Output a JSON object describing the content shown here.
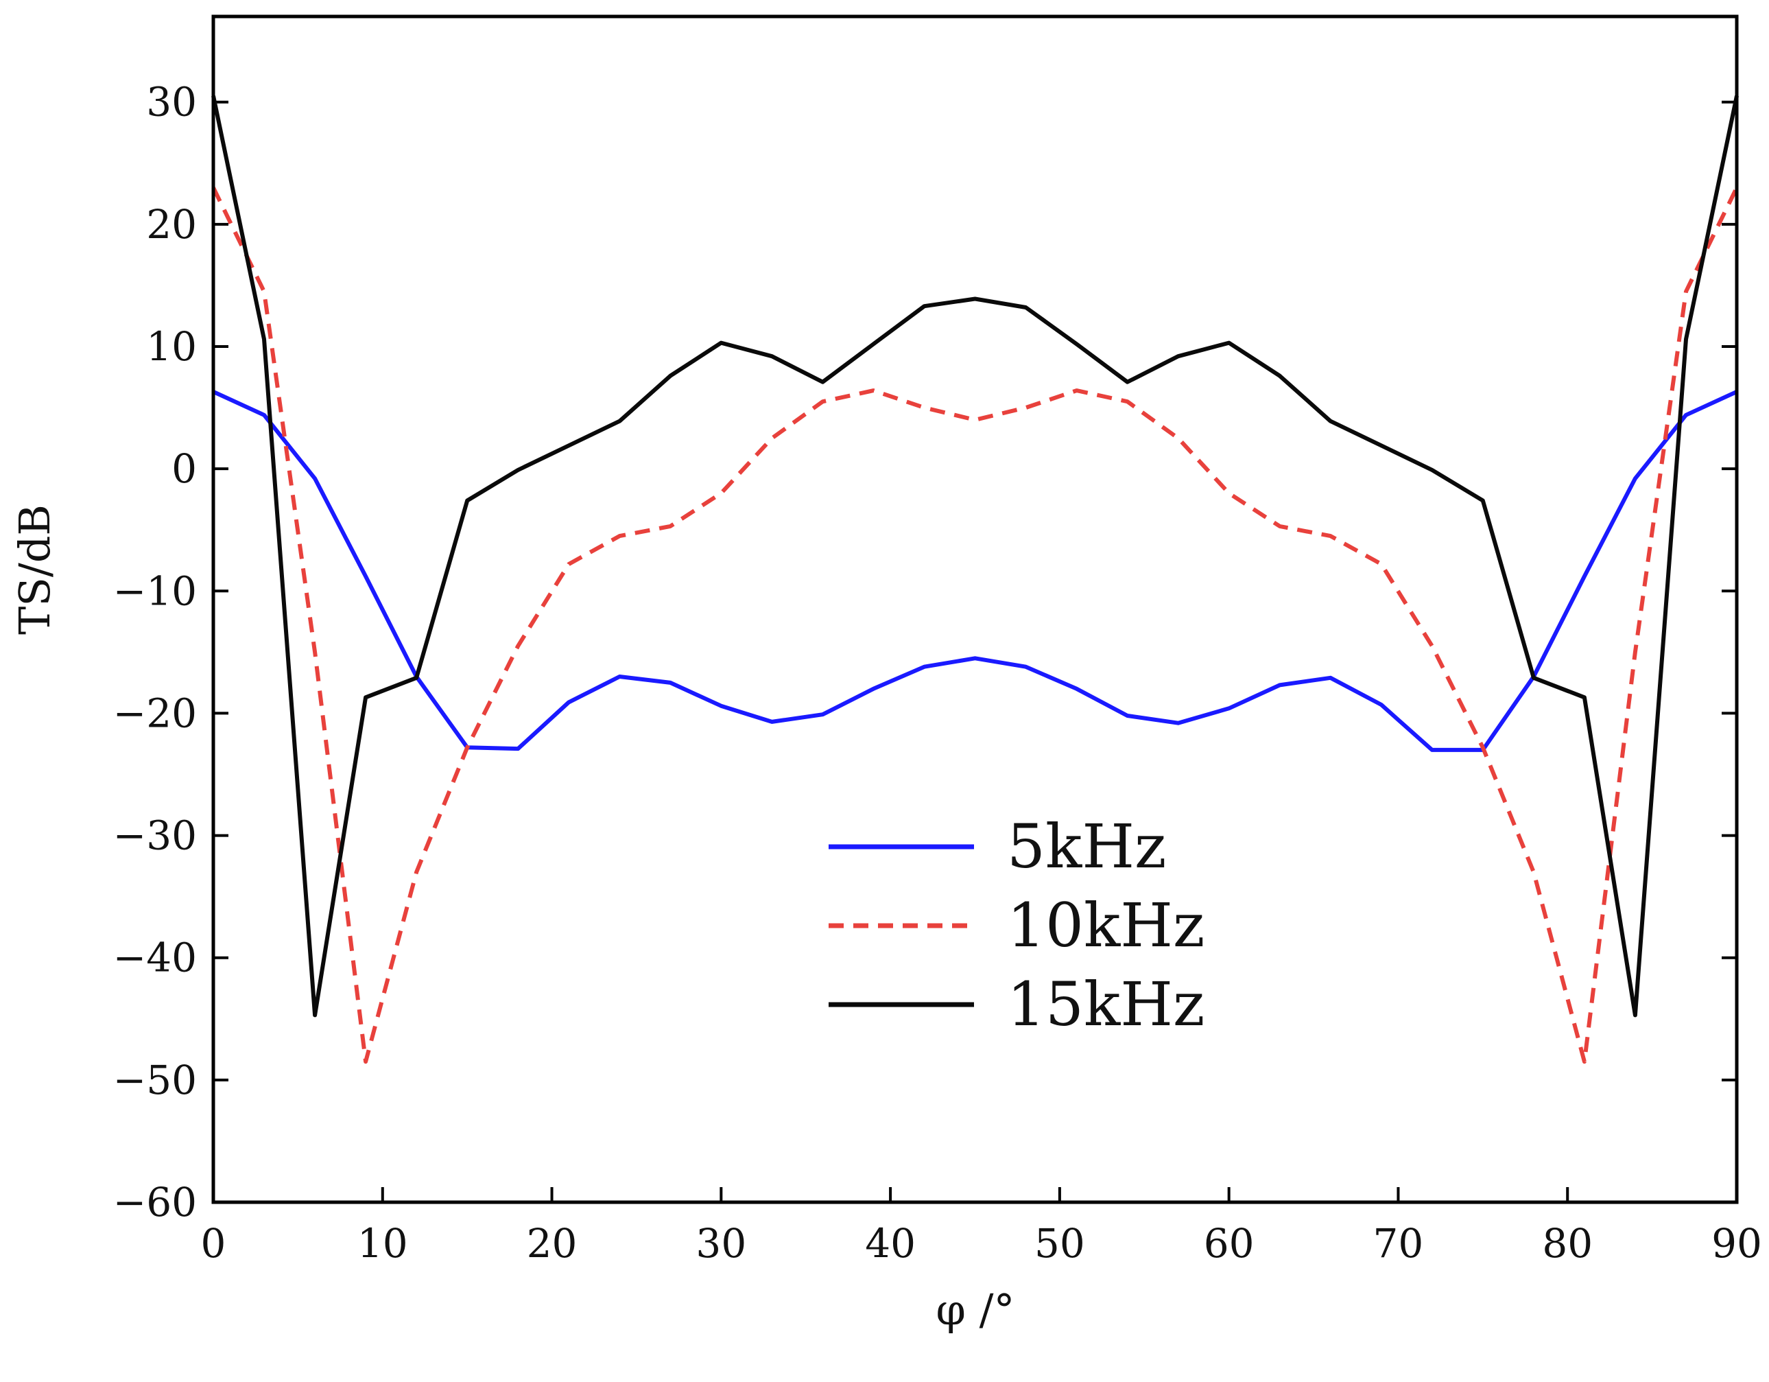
{
  "chart_data": {
    "type": "line",
    "xlabel": "φ /°",
    "ylabel": "TS/dB",
    "xlim": [
      0,
      90
    ],
    "ylim": [
      -60,
      37
    ],
    "xticks": [
      0,
      10,
      20,
      30,
      40,
      50,
      60,
      70,
      80,
      90
    ],
    "yticks": [
      -60,
      -50,
      -40,
      -30,
      -20,
      -10,
      0,
      10,
      20,
      30
    ],
    "xtick_labels": [
      "0",
      "10",
      "20",
      "30",
      "40",
      "50",
      "60",
      "70",
      "80",
      "90"
    ],
    "ytick_labels": [
      "−60",
      "−50",
      "−40",
      "−30",
      "−20",
      "−10",
      "0",
      "10",
      "20",
      "30"
    ],
    "grid": false,
    "legend_position": "lower-center",
    "x": [
      0,
      3,
      6,
      9,
      12,
      15,
      18,
      21,
      24,
      27,
      30,
      33,
      36,
      39,
      42,
      45,
      48,
      51,
      54,
      57,
      60,
      63,
      66,
      69,
      72,
      75,
      78,
      81,
      84,
      87,
      90
    ],
    "series": [
      {
        "name": "5kHz",
        "color": "#1a1aff",
        "style": "solid",
        "values": [
          6.3,
          4.4,
          -0.8,
          -8.8,
          -17.0,
          -22.8,
          -22.9,
          -19.1,
          -17.0,
          -17.5,
          -19.4,
          -20.7,
          -20.1,
          -18.0,
          -16.2,
          -15.5,
          -16.2,
          -18.0,
          -20.2,
          -20.8,
          -19.6,
          -17.7,
          -17.1,
          -19.3,
          -23.0,
          -23.0,
          -17.0,
          -8.8,
          -0.8,
          4.4,
          6.3
        ]
      },
      {
        "name": "10kHz",
        "color": "#e8413c",
        "style": "dashed",
        "values": [
          23.0,
          14.5,
          -15.0,
          -48.5,
          -33.0,
          -22.8,
          -14.5,
          -7.8,
          -5.5,
          -4.7,
          -2.0,
          2.5,
          5.5,
          6.4,
          5.0,
          4.0,
          5.0,
          6.4,
          5.5,
          2.5,
          -2.0,
          -4.7,
          -5.5,
          -7.8,
          -14.5,
          -22.8,
          -33.0,
          -48.5,
          -15.0,
          14.5,
          23.0
        ]
      },
      {
        "name": "15kHz",
        "color": "#0a0a0a",
        "style": "solid",
        "values": [
          30.5,
          10.6,
          -44.7,
          -18.7,
          -17.1,
          -2.6,
          -0.1,
          1.9,
          3.9,
          7.6,
          10.3,
          9.2,
          7.1,
          10.2,
          13.3,
          13.9,
          13.2,
          10.2,
          7.1,
          9.2,
          10.3,
          7.6,
          3.9,
          1.9,
          -0.1,
          -2.6,
          -17.1,
          -18.7,
          -44.7,
          10.6,
          30.5
        ]
      }
    ]
  }
}
